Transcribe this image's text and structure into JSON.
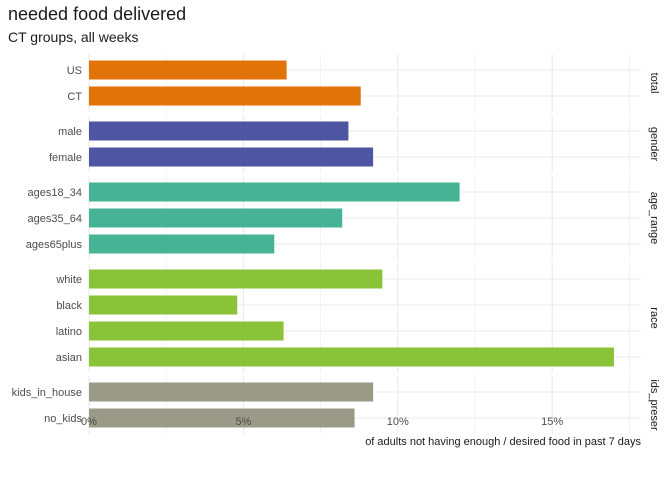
{
  "chart_data": {
    "type": "bar",
    "orientation": "horizontal",
    "title": "needed food delivered",
    "subtitle": "CT groups, all weeks",
    "xlabel": "of adults not having enough / desired food in past 7 days",
    "ylabel": "",
    "xlim": [
      0,
      0.175
    ],
    "xticks": [
      0,
      0.05,
      0.1,
      0.15
    ],
    "xtick_labels": [
      "0%",
      "5%",
      "10%",
      "15%"
    ],
    "grid": true,
    "facets": [
      {
        "name": "total",
        "color": "#E1730A",
        "categories": [
          "US",
          "CT"
        ],
        "values": [
          0.064,
          0.088
        ]
      },
      {
        "name": "gender",
        "color": "#4E55A2",
        "categories": [
          "male",
          "female"
        ],
        "values": [
          0.084,
          0.092
        ]
      },
      {
        "name": "age_range",
        "color": "#45B394",
        "categories": [
          "ages18_34",
          "ages35_64",
          "ages65plus"
        ],
        "values": [
          0.12,
          0.082,
          0.06
        ]
      },
      {
        "name": "race",
        "color": "#8AC338",
        "categories": [
          "white",
          "black",
          "latino",
          "asian"
        ],
        "values": [
          0.095,
          0.048,
          0.063,
          0.17
        ]
      },
      {
        "name": "ids_preser",
        "color": "#999B88",
        "categories": [
          "kids_in_house",
          "no_kids"
        ],
        "values": [
          0.092,
          0.086
        ]
      }
    ]
  }
}
